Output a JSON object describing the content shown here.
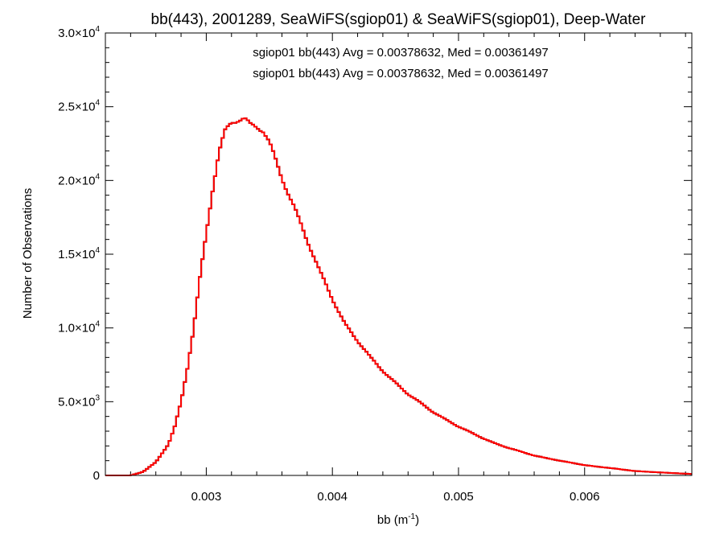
{
  "chart_data": {
    "type": "line",
    "style": "histogram-step",
    "title": "bb(443), 2001289, SeaWiFS(sgiop01) & SeaWiFS(sgiop01), Deep-Water",
    "xlabel_base": "bb (m",
    "xlabel_exp": "-1",
    "xlabel_close": ")",
    "ylabel": "Number of Observations",
    "xlim": [
      0.0022,
      0.00685
    ],
    "ylim": [
      0,
      30000
    ],
    "grid": false,
    "x_ticks": [
      {
        "value": 0.003,
        "label": "0.003"
      },
      {
        "value": 0.004,
        "label": "0.004"
      },
      {
        "value": 0.005,
        "label": "0.005"
      },
      {
        "value": 0.006,
        "label": "0.006"
      }
    ],
    "y_ticks": [
      {
        "value": 0,
        "mant": "0",
        "exp": ""
      },
      {
        "value": 5000,
        "mant": "5.0×10",
        "exp": "3"
      },
      {
        "value": 10000,
        "mant": "1.0×10",
        "exp": "4"
      },
      {
        "value": 15000,
        "mant": "1.5×10",
        "exp": "4"
      },
      {
        "value": 20000,
        "mant": "2.0×10",
        "exp": "4"
      },
      {
        "value": 25000,
        "mant": "2.5×10",
        "exp": "4"
      },
      {
        "value": 30000,
        "mant": "3.0×10",
        "exp": "4"
      }
    ],
    "annotations": [
      {
        "text": "sgiop01 bb(443) Avg = 0.00378632, Med = 0.00361497",
        "color": "#000000"
      },
      {
        "text": "sgiop01 bb(443) Avg = 0.00378632, Med = 0.00361497",
        "color": "#ff0000"
      }
    ],
    "series": [
      {
        "color": "#ff0000",
        "overlaps": "#000000",
        "x": [
          0.0022,
          0.0024,
          0.0025,
          0.0026,
          0.0027,
          0.00275,
          0.0028,
          0.00285,
          0.0029,
          0.00295,
          0.003,
          0.00305,
          0.0031,
          0.00315,
          0.0032,
          0.00325,
          0.0033,
          0.00335,
          0.0034,
          0.00345,
          0.0035,
          0.0036,
          0.0037,
          0.0038,
          0.0039,
          0.004,
          0.0041,
          0.0042,
          0.0043,
          0.0044,
          0.0045,
          0.0046,
          0.0047,
          0.0048,
          0.0049,
          0.005,
          0.0051,
          0.0052,
          0.0053,
          0.0054,
          0.0055,
          0.0056,
          0.0058,
          0.006,
          0.0062,
          0.0064,
          0.0066,
          0.00685
        ],
        "values": [
          0,
          0,
          250,
          900,
          2100,
          3300,
          5000,
          7300,
          10000,
          13400,
          16400,
          19300,
          21800,
          23300,
          24000,
          24200,
          24300,
          23800,
          23600,
          23300,
          22500,
          20200,
          18200,
          15900,
          13800,
          12000,
          10300,
          9100,
          8000,
          7100,
          6300,
          5500,
          4900,
          4300,
          3800,
          3300,
          2900,
          2500,
          2150,
          1850,
          1600,
          1350,
          1000,
          700,
          500,
          300,
          200,
          100
        ]
      }
    ]
  }
}
